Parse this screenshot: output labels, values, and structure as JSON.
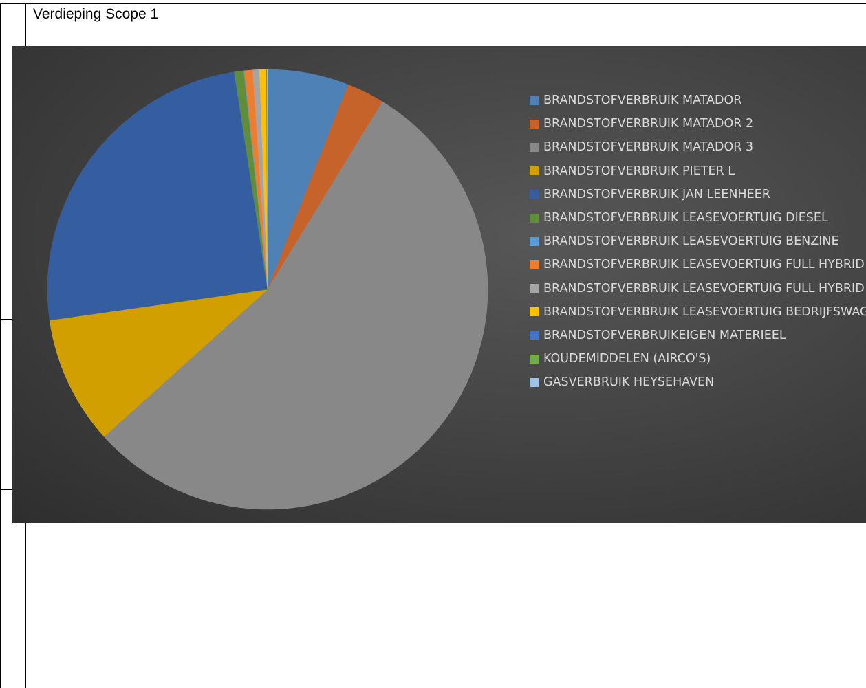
{
  "section_title": "Verdieping Scope 1",
  "chart_data": {
    "type": "pie",
    "title": "",
    "legend_position": "right",
    "series": [
      {
        "name": "BRANDSTOFVERBRUIK MATADOR",
        "value": 6.0,
        "color": "#4e81b6"
      },
      {
        "name": "BRANDSTOFVERBRUIK MATADOR 2",
        "value": 2.8,
        "color": "#c5632a"
      },
      {
        "name": "BRANDSTOFVERBRUIK MATADOR 3",
        "value": 55.0,
        "color": "#888888"
      },
      {
        "name": "BRANDSTOFVERBRUIK PIETER L",
        "value": 9.5,
        "color": "#d1a000"
      },
      {
        "name": "BRANDSTOFVERBRUIK JAN LEENHEER",
        "value": 25.0,
        "color": "#355ea1"
      },
      {
        "name": "BRANDSTOFVERBRUIK LEASEVOERTUIG DIESEL",
        "value": 0.7,
        "color": "#5f8d3a"
      },
      {
        "name": "BRANDSTOFVERBRUIK LEASEVOERTUIG BENZINE",
        "value": 0.05,
        "color": "#5b9bd5"
      },
      {
        "name": "BRANDSTOFVERBRUIK LEASEVOERTUIG FULL HYBRID",
        "value": 0.6,
        "color": "#ed7d31"
      },
      {
        "name": "BRANDSTOFVERBRUIK LEASEVOERTUIG FULL HYBRID",
        "value": 0.5,
        "color": "#a5a5a5"
      },
      {
        "name": "BRANDSTOFVERBRUIK LEASEVOERTUIG BEDRIJFSWAGEN",
        "value": 0.5,
        "color": "#ffc000"
      },
      {
        "name": "BRANDSTOFVERBRUIKEIGEN MATERIEEL",
        "value": 0.03,
        "color": "#4472c4"
      },
      {
        "name": "KOUDEMIDDELEN (AIRCO'S)",
        "value": 0.03,
        "color": "#70ad47"
      },
      {
        "name": "GASVERBRUIK HEYSEHAVEN",
        "value": 0.03,
        "color": "#9dc3e6"
      }
    ]
  }
}
